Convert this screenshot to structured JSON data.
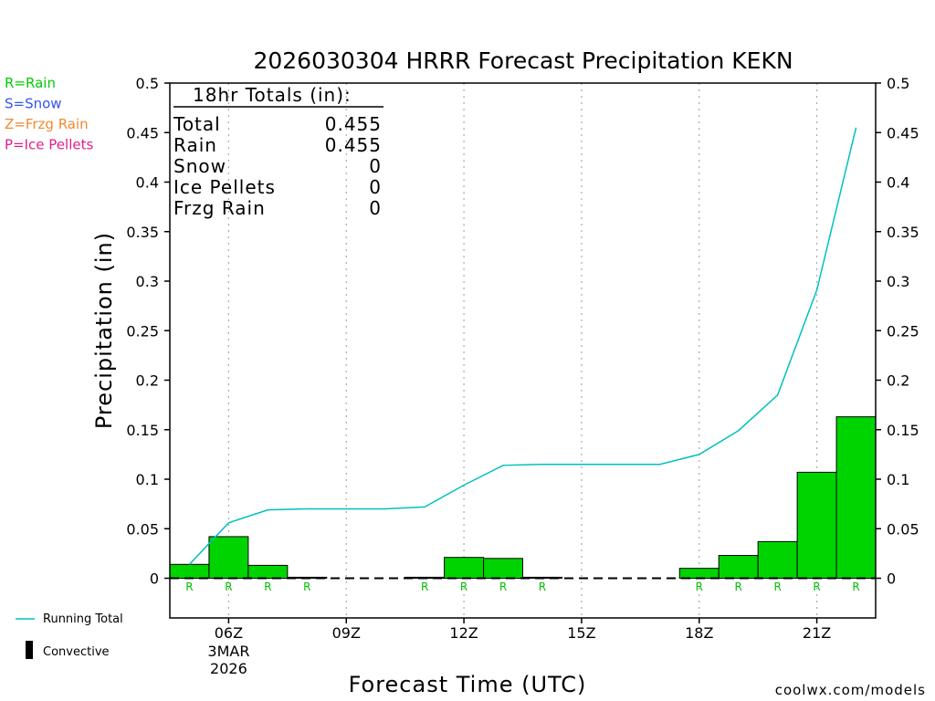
{
  "chart_data": {
    "type": "bar",
    "title": "2026030304 HRRR Forecast Precipitation KEKN",
    "xlabel": "Forecast Time (UTC)",
    "ylabel": "Precipitation (in)",
    "ylim": [
      -0.04,
      0.5
    ],
    "xlim": [
      4.5,
      22.5
    ],
    "yticks": [
      0,
      0.05,
      0.1,
      0.15,
      0.2,
      0.25,
      0.3,
      0.35,
      0.4,
      0.45,
      0.5
    ],
    "ytick_labels": [
      "0",
      "0.05",
      "0.1",
      "0.15",
      "0.2",
      "0.25",
      "0.3",
      "0.35",
      "0.4",
      "0.45",
      "0.5"
    ],
    "xticks": [
      {
        "x": 6,
        "label": "06Z",
        "sublabels": [
          "3MAR",
          "2026"
        ]
      },
      {
        "x": 9,
        "label": "09Z",
        "sublabels": []
      },
      {
        "x": 12,
        "label": "12Z",
        "sublabels": []
      },
      {
        "x": 15,
        "label": "15Z",
        "sublabels": []
      },
      {
        "x": 18,
        "label": "18Z",
        "sublabels": []
      },
      {
        "x": 21,
        "label": "21Z",
        "sublabels": []
      }
    ],
    "grid": "vertical dotted lines at each 3 h tick",
    "hours": [
      5,
      6,
      7,
      8,
      9,
      10,
      11,
      12,
      13,
      14,
      15,
      16,
      17,
      18,
      19,
      20,
      21,
      22
    ],
    "series": [
      {
        "type": "bar",
        "values": [
          0.014,
          0.042,
          0.013,
          0.001,
          0.0,
          0.0,
          0.001,
          0.021,
          0.02,
          0.001,
          0.0,
          0.0,
          0.0,
          0.01,
          0.023,
          0.037,
          0.107,
          0.163
        ],
        "color": "#00d400"
      },
      {
        "name": "Running Total",
        "type": "line",
        "values": [
          0.014,
          0.056,
          0.069,
          0.07,
          0.07,
          0.07,
          0.072,
          0.094,
          0.114,
          0.115,
          0.115,
          0.115,
          0.115,
          0.125,
          0.149,
          0.185,
          0.291,
          0.455
        ],
        "color": "#00c0c0"
      }
    ],
    "ptype_labels": [
      "R",
      "R",
      "R",
      "R",
      "",
      "",
      "R",
      "R",
      "R",
      "R",
      "",
      "",
      "",
      "R",
      "R",
      "R",
      "R",
      "R"
    ],
    "ptype_label_color": "#00c000",
    "totals_box": {
      "header": "18hr Totals (in):",
      "rows": [
        {
          "label": "Total",
          "value": "0.455"
        },
        {
          "label": "Rain",
          "value": "0.455"
        },
        {
          "label": "Snow",
          "value": "0"
        },
        {
          "label": "Ice Pellets",
          "value": "0"
        },
        {
          "label": "Frzg Rain",
          "value": "0"
        }
      ]
    },
    "ptype_legend": [
      {
        "text": "R=Rain",
        "color": "#00cc00"
      },
      {
        "text": "S=Snow",
        "color": "#3355ee"
      },
      {
        "text": "Z=Frzg Rain",
        "color": "#f08a30"
      },
      {
        "text": "P=Ice Pellets",
        "color": "#e0208a"
      }
    ],
    "series_legend": [
      {
        "text": "Running Total",
        "color": "#00c0c0",
        "symbol": "line"
      },
      {
        "text": "Convective",
        "color": "#000000",
        "symbol": "block"
      }
    ],
    "legend_position": "left, outside plot",
    "credit": "coolwx.com/models",
    "credit_color": "#e00000"
  }
}
